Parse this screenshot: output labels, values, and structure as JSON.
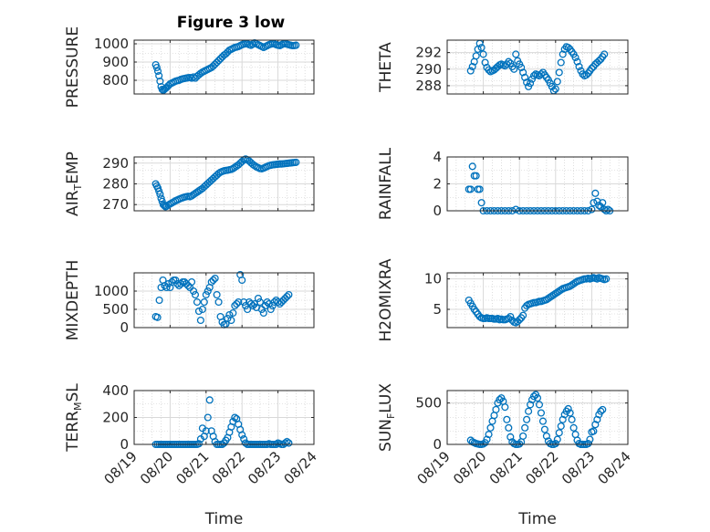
{
  "figure": {
    "title": "Figure 3 low",
    "colors": {
      "marker": "#0072BD",
      "axis": "#262626",
      "grid": "#d9d9d9",
      "minor_grid": "#c8c8c8"
    },
    "x_tick_labels": [
      "08/19",
      "08/20",
      "08/21",
      "08/22",
      "08/23",
      "08/24"
    ],
    "x_label": "Time"
  },
  "chart_data": [
    {
      "type": "scatter",
      "ylabel": "PRESSURE",
      "xlim": [
        "08/19",
        "08/24"
      ],
      "ylim": [
        725,
        1020
      ],
      "yticks": [
        800,
        900,
        1000
      ],
      "grid": true,
      "x": [
        19.6,
        19.63,
        19.66,
        19.69,
        19.72,
        19.75,
        19.78,
        19.81,
        19.84,
        19.87,
        19.9,
        19.95,
        20.0,
        20.05,
        20.1,
        20.15,
        20.2,
        20.25,
        20.3,
        20.35,
        20.4,
        20.45,
        20.5,
        20.55,
        20.6,
        20.65,
        20.7,
        20.75,
        20.8,
        20.85,
        20.9,
        20.95,
        21.0,
        21.05,
        21.1,
        21.15,
        21.2,
        21.25,
        21.3,
        21.35,
        21.4,
        21.45,
        21.5,
        21.55,
        21.6,
        21.65,
        21.7,
        21.75,
        21.8,
        21.85,
        21.9,
        21.95,
        22.0,
        22.05,
        22.1,
        22.15,
        22.2,
        22.25,
        22.3,
        22.35,
        22.4,
        22.45,
        22.5,
        22.55,
        22.6,
        22.65,
        22.7,
        22.75,
        22.8,
        22.85,
        22.9,
        22.95,
        23.0,
        23.05,
        23.1,
        23.15,
        23.2,
        23.25,
        23.3,
        23.35,
        23.4,
        23.45,
        23.5
      ],
      "y": [
        885,
        870,
        850,
        825,
        795,
        765,
        750,
        745,
        750,
        755,
        760,
        770,
        780,
        785,
        790,
        795,
        798,
        800,
        805,
        808,
        810,
        812,
        814,
        815,
        812,
        818,
        812,
        822,
        830,
        838,
        845,
        850,
        855,
        860,
        865,
        870,
        878,
        888,
        898,
        908,
        918,
        928,
        938,
        945,
        955,
        965,
        970,
        975,
        980,
        982,
        985,
        990,
        995,
        998,
        1000,
        1000,
        995,
        992,
        998,
        1005,
        1000,
        995,
        990,
        985,
        980,
        985,
        990,
        995,
        998,
        1000,
        1000,
        995,
        992,
        990,
        995,
        1000,
        1000,
        998,
        995,
        992,
        990,
        990,
        992
      ]
    },
    {
      "type": "scatter",
      "ylabel": "THETA",
      "xlim": [
        "08/19",
        "08/24"
      ],
      "ylim": [
        287,
        293.5
      ],
      "yticks": [
        288,
        290,
        292
      ],
      "grid": true,
      "x": [
        19.65,
        19.7,
        19.75,
        19.8,
        19.85,
        19.9,
        19.95,
        20.0,
        20.05,
        20.1,
        20.15,
        20.2,
        20.25,
        20.3,
        20.35,
        20.4,
        20.45,
        20.5,
        20.55,
        20.6,
        20.65,
        20.7,
        20.75,
        20.8,
        20.85,
        20.9,
        20.95,
        21.0,
        21.05,
        21.1,
        21.15,
        21.2,
        21.25,
        21.3,
        21.35,
        21.4,
        21.45,
        21.5,
        21.55,
        21.6,
        21.65,
        21.7,
        21.75,
        21.8,
        21.85,
        21.9,
        21.95,
        22.0,
        22.05,
        22.1,
        22.15,
        22.2,
        22.25,
        22.3,
        22.35,
        22.4,
        22.45,
        22.5,
        22.55,
        22.6,
        22.65,
        22.7,
        22.75,
        22.8,
        22.85,
        22.9,
        22.95,
        23.0,
        23.05,
        23.1,
        23.15,
        23.2,
        23.25,
        23.3,
        23.35
      ],
      "y": [
        289.8,
        290.3,
        290.9,
        291.6,
        292.4,
        293.1,
        292.6,
        291.8,
        290.8,
        290.2,
        289.9,
        289.7,
        289.8,
        289.9,
        290.1,
        290.3,
        290.5,
        290.6,
        290.5,
        290.4,
        290.6,
        290.9,
        290.7,
        290.3,
        290.0,
        291.8,
        291.0,
        290.6,
        290.2,
        289.6,
        289.0,
        288.4,
        287.9,
        288.3,
        288.8,
        289.2,
        289.4,
        289.3,
        289.2,
        289.4,
        289.6,
        289.3,
        289.0,
        288.7,
        288.3,
        287.9,
        287.4,
        287.6,
        288.5,
        289.6,
        290.8,
        291.8,
        292.4,
        292.7,
        292.6,
        292.4,
        292.1,
        291.8,
        291.4,
        290.9,
        290.3,
        289.8,
        289.4,
        289.2,
        289.3,
        289.5,
        289.8,
        290.1,
        290.3,
        290.6,
        290.8,
        291.0,
        291.2,
        291.5,
        291.8
      ]
    },
    {
      "type": "scatter",
      "ylabel": "AIR_TEMP",
      "xlim": [
        "08/19",
        "08/24"
      ],
      "ylim": [
        267,
        293
      ],
      "yticks": [
        270,
        280,
        290
      ],
      "grid": true,
      "x": [
        19.6,
        19.63,
        19.66,
        19.69,
        19.72,
        19.75,
        19.78,
        19.81,
        19.84,
        19.87,
        19.9,
        19.95,
        20.0,
        20.05,
        20.1,
        20.15,
        20.2,
        20.25,
        20.3,
        20.35,
        20.4,
        20.45,
        20.5,
        20.55,
        20.6,
        20.65,
        20.7,
        20.75,
        20.8,
        20.85,
        20.9,
        20.95,
        21.0,
        21.05,
        21.1,
        21.15,
        21.2,
        21.25,
        21.3,
        21.35,
        21.4,
        21.45,
        21.5,
        21.55,
        21.6,
        21.65,
        21.7,
        21.75,
        21.8,
        21.85,
        21.9,
        21.95,
        22.0,
        22.05,
        22.1,
        22.15,
        22.2,
        22.25,
        22.3,
        22.35,
        22.4,
        22.45,
        22.5,
        22.55,
        22.6,
        22.65,
        22.7,
        22.75,
        22.8,
        22.85,
        22.9,
        22.95,
        23.0,
        23.05,
        23.1,
        23.15,
        23.2,
        23.25,
        23.3,
        23.35,
        23.4,
        23.45,
        23.5
      ],
      "y": [
        280,
        279,
        278,
        276.5,
        275,
        273,
        271.5,
        270,
        269.5,
        269,
        269.2,
        269.8,
        270.3,
        270.8,
        271.3,
        271.8,
        272.2,
        272.6,
        273.0,
        273.3,
        273.6,
        273.8,
        274.0,
        273.8,
        274.2,
        274.8,
        275.4,
        276.0,
        276.6,
        277.2,
        277.8,
        278.6,
        279.4,
        280.2,
        281.0,
        281.8,
        282.6,
        283.4,
        284.2,
        285.0,
        285.6,
        286.0,
        286.3,
        286.5,
        286.6,
        286.8,
        287.0,
        287.4,
        288.0,
        288.6,
        289.2,
        290.0,
        290.8,
        291.6,
        292.0,
        291.6,
        291.0,
        290.2,
        289.4,
        288.8,
        288.2,
        287.8,
        287.4,
        287.3,
        287.6,
        288.0,
        288.4,
        288.8,
        289.0,
        289.2,
        289.3,
        289.4,
        289.5,
        289.6,
        289.6,
        289.7,
        289.8,
        289.9,
        290.0,
        290.1,
        290.2,
        290.3,
        290.4
      ]
    },
    {
      "type": "scatter",
      "ylabel": "RAINFALL",
      "xlim": [
        "08/19",
        "08/24"
      ],
      "ylim": [
        0,
        4
      ],
      "yticks": [
        0,
        2,
        4
      ],
      "grid": true,
      "x": [
        19.6,
        19.65,
        19.7,
        19.75,
        19.8,
        19.85,
        19.9,
        19.95,
        20.0,
        20.1,
        20.2,
        20.3,
        20.4,
        20.5,
        20.6,
        20.7,
        20.8,
        20.9,
        21.0,
        21.1,
        21.2,
        21.3,
        21.4,
        21.5,
        21.6,
        21.7,
        21.8,
        21.9,
        22.0,
        22.1,
        22.2,
        22.3,
        22.4,
        22.5,
        22.6,
        22.7,
        22.8,
        22.9,
        23.0,
        23.05,
        23.1,
        23.15,
        23.2,
        23.25,
        23.3,
        23.35,
        23.4,
        23.45,
        23.5
      ],
      "y": [
        1.6,
        1.6,
        3.3,
        2.6,
        2.6,
        1.6,
        1.6,
        0.6,
        0,
        0,
        0,
        0,
        0,
        0,
        0,
        0,
        0,
        0.1,
        0,
        0,
        0,
        0,
        0,
        0,
        0,
        0,
        0,
        0,
        0,
        0,
        0,
        0,
        0,
        0,
        0,
        0,
        0,
        0,
        0.1,
        0.6,
        1.3,
        0.7,
        0.4,
        0.3,
        0.6,
        0.1,
        0,
        0.1,
        0
      ]
    },
    {
      "type": "scatter",
      "ylabel": "MIXDEPTH",
      "xlim": [
        "08/19",
        "08/24"
      ],
      "ylim": [
        0,
        1500
      ],
      "yticks": [
        0,
        500,
        1000
      ],
      "grid": true,
      "x": [
        19.6,
        19.65,
        19.7,
        19.75,
        19.8,
        19.85,
        19.9,
        19.95,
        20.0,
        20.05,
        20.1,
        20.15,
        20.2,
        20.25,
        20.3,
        20.35,
        20.4,
        20.45,
        20.5,
        20.55,
        20.6,
        20.65,
        20.7,
        20.75,
        20.8,
        20.85,
        20.9,
        20.95,
        21.0,
        21.05,
        21.1,
        21.15,
        21.2,
        21.25,
        21.3,
        21.35,
        21.4,
        21.45,
        21.5,
        21.55,
        21.6,
        21.65,
        21.7,
        21.75,
        21.8,
        21.85,
        21.9,
        21.95,
        22.0,
        22.05,
        22.1,
        22.15,
        22.2,
        22.25,
        22.3,
        22.35,
        22.4,
        22.45,
        22.5,
        22.55,
        22.6,
        22.65,
        22.7,
        22.75,
        22.8,
        22.85,
        22.9,
        22.95,
        23.0,
        23.05,
        23.1,
        23.15,
        23.2,
        23.25,
        23.3
      ],
      "y": [
        300,
        280,
        750,
        1100,
        1300,
        1150,
        1100,
        1200,
        1100,
        1250,
        1300,
        1300,
        1200,
        1150,
        1200,
        1250,
        1250,
        1200,
        1150,
        1100,
        1250,
        1000,
        900,
        700,
        450,
        200,
        500,
        700,
        900,
        1000,
        1100,
        1250,
        1300,
        1350,
        900,
        700,
        300,
        150,
        80,
        100,
        250,
        350,
        200,
        400,
        600,
        650,
        700,
        1450,
        1300,
        700,
        600,
        500,
        700,
        650,
        600,
        650,
        550,
        800,
        700,
        500,
        400,
        600,
        700,
        650,
        500,
        600,
        700,
        750,
        700,
        650,
        700,
        750,
        800,
        850,
        900
      ]
    },
    {
      "type": "scatter",
      "ylabel": "H2OMIXRA",
      "xlim": [
        "08/19",
        "08/24"
      ],
      "ylim": [
        2,
        11
      ],
      "yticks": [
        5,
        10
      ],
      "grid": true,
      "x": [
        19.6,
        19.65,
        19.7,
        19.75,
        19.8,
        19.85,
        19.9,
        19.95,
        20.0,
        20.05,
        20.1,
        20.15,
        20.2,
        20.25,
        20.3,
        20.35,
        20.4,
        20.45,
        20.5,
        20.55,
        20.6,
        20.65,
        20.7,
        20.75,
        20.8,
        20.85,
        20.9,
        20.95,
        21.0,
        21.05,
        21.1,
        21.15,
        21.2,
        21.25,
        21.3,
        21.35,
        21.4,
        21.45,
        21.5,
        21.55,
        21.6,
        21.65,
        21.7,
        21.75,
        21.8,
        21.85,
        21.9,
        21.95,
        22.0,
        22.05,
        22.1,
        22.15,
        22.2,
        22.25,
        22.3,
        22.35,
        22.4,
        22.45,
        22.5,
        22.55,
        22.6,
        22.65,
        22.7,
        22.75,
        22.8,
        22.85,
        22.9,
        22.95,
        23.0,
        23.05,
        23.1,
        23.15,
        23.2,
        23.25,
        23.3,
        23.35,
        23.4
      ],
      "y": [
        6.5,
        6.0,
        5.5,
        5.0,
        4.6,
        4.2,
        3.8,
        3.6,
        3.5,
        3.5,
        3.6,
        3.5,
        3.5,
        3.5,
        3.4,
        3.4,
        3.5,
        3.3,
        3.4,
        3.3,
        3.3,
        3.4,
        3.5,
        3.8,
        3.2,
        2.9,
        2.8,
        3.0,
        3.3,
        3.6,
        4.0,
        5.2,
        5.6,
        5.8,
        5.9,
        6.0,
        6.1,
        6.1,
        6.2,
        6.3,
        6.3,
        6.4,
        6.5,
        6.6,
        6.8,
        7.0,
        7.2,
        7.4,
        7.6,
        7.8,
        8.0,
        8.2,
        8.4,
        8.5,
        8.6,
        8.7,
        8.8,
        9.0,
        9.2,
        9.4,
        9.6,
        9.7,
        9.8,
        9.9,
        10.0,
        10.0,
        10.1,
        10.0,
        10.1,
        10.2,
        10.1,
        10.0,
        10.2,
        10.1,
        10.0,
        9.9,
        10.0
      ]
    },
    {
      "type": "scatter",
      "ylabel": "TERR_MSL",
      "xlim": [
        "08/19",
        "08/24"
      ],
      "ylim": [
        0,
        400
      ],
      "yticks": [
        0,
        200,
        400
      ],
      "grid": true,
      "x": [
        19.6,
        19.65,
        19.7,
        19.75,
        19.8,
        19.85,
        19.9,
        19.95,
        20.0,
        20.05,
        20.1,
        20.15,
        20.2,
        20.25,
        20.3,
        20.35,
        20.4,
        20.45,
        20.5,
        20.55,
        20.6,
        20.65,
        20.7,
        20.75,
        20.8,
        20.85,
        20.9,
        20.95,
        21.0,
        21.05,
        21.1,
        21.15,
        21.2,
        21.25,
        21.3,
        21.35,
        21.4,
        21.45,
        21.5,
        21.55,
        21.6,
        21.65,
        21.7,
        21.75,
        21.8,
        21.85,
        21.9,
        21.95,
        22.0,
        22.05,
        22.1,
        22.15,
        22.2,
        22.25,
        22.3,
        22.35,
        22.4,
        22.45,
        22.5,
        22.55,
        22.6,
        22.65,
        22.7,
        22.75,
        22.8,
        22.85,
        22.9,
        22.95,
        23.0,
        23.05,
        23.1,
        23.15,
        23.2,
        23.25,
        23.3
      ],
      "y": [
        0,
        0,
        0,
        0,
        0,
        0,
        0,
        0,
        0,
        0,
        0,
        0,
        0,
        0,
        0,
        0,
        0,
        0,
        0,
        0,
        0,
        0,
        0,
        0,
        5,
        40,
        120,
        60,
        100,
        200,
        330,
        100,
        60,
        20,
        0,
        0,
        0,
        0,
        10,
        30,
        50,
        90,
        130,
        170,
        200,
        190,
        150,
        110,
        70,
        40,
        10,
        0,
        0,
        0,
        0,
        0,
        0,
        0,
        0,
        0,
        0,
        0,
        0,
        5,
        0,
        0,
        0,
        0,
        10,
        5,
        0,
        0,
        10,
        20,
        10
      ]
    },
    {
      "type": "scatter",
      "ylabel": "SUN_FLUX",
      "xlim": [
        "08/19",
        "08/24"
      ],
      "ylim": [
        0,
        650
      ],
      "yticks": [
        0,
        500
      ],
      "grid": true,
      "x": [
        19.65,
        19.7,
        19.75,
        19.8,
        19.85,
        19.9,
        19.95,
        20.0,
        20.05,
        20.1,
        20.15,
        20.2,
        20.25,
        20.3,
        20.35,
        20.4,
        20.45,
        20.5,
        20.55,
        20.6,
        20.65,
        20.7,
        20.75,
        20.8,
        20.85,
        20.9,
        20.95,
        21.0,
        21.05,
        21.1,
        21.15,
        21.2,
        21.25,
        21.3,
        21.35,
        21.4,
        21.45,
        21.5,
        21.55,
        21.6,
        21.65,
        21.7,
        21.75,
        21.8,
        21.85,
        21.9,
        21.95,
        22.0,
        22.05,
        22.1,
        22.15,
        22.2,
        22.25,
        22.3,
        22.35,
        22.4,
        22.45,
        22.5,
        22.55,
        22.6,
        22.65,
        22.7,
        22.75,
        22.8,
        22.85,
        22.9,
        22.95,
        23.0,
        23.05,
        23.1,
        23.15,
        23.2,
        23.25,
        23.3
      ],
      "y": [
        50,
        30,
        20,
        10,
        5,
        0,
        0,
        5,
        20,
        60,
        120,
        200,
        280,
        350,
        420,
        500,
        540,
        560,
        520,
        450,
        300,
        200,
        90,
        30,
        10,
        0,
        0,
        5,
        30,
        100,
        200,
        300,
        400,
        480,
        540,
        580,
        600,
        560,
        480,
        380,
        280,
        180,
        100,
        40,
        10,
        0,
        0,
        10,
        60,
        140,
        220,
        300,
        360,
        400,
        430,
        380,
        300,
        200,
        120,
        50,
        10,
        0,
        0,
        0,
        0,
        10,
        60,
        150,
        160,
        240,
        300,
        360,
        400,
        420
      ]
    }
  ]
}
